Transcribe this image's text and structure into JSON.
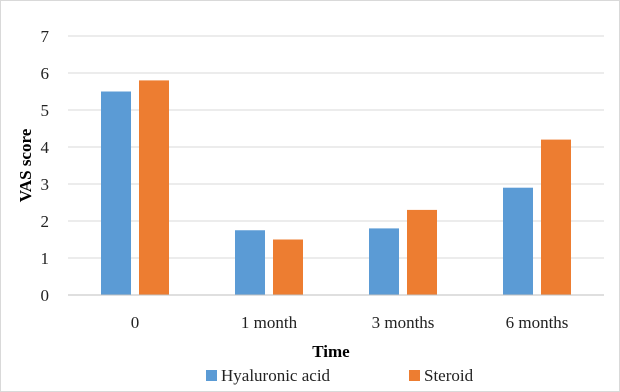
{
  "chart_data": {
    "type": "bar",
    "title": "",
    "xlabel": "Time",
    "ylabel": "VAS score",
    "categories": [
      "0",
      "1 month",
      "3 months",
      "6 months"
    ],
    "series": [
      {
        "name": "Hyaluronic acid",
        "values": [
          5.5,
          1.75,
          1.8,
          2.9
        ],
        "color": "#5B9BD5"
      },
      {
        "name": "Steroid",
        "values": [
          5.8,
          1.5,
          2.3,
          4.2
        ],
        "color": "#ED7D31"
      }
    ],
    "ylim": [
      0,
      7
    ],
    "yticks": [
      "0",
      "1",
      "2",
      "3",
      "4",
      "5",
      "6",
      "7"
    ],
    "grid": true,
    "legend_position": "bottom"
  }
}
